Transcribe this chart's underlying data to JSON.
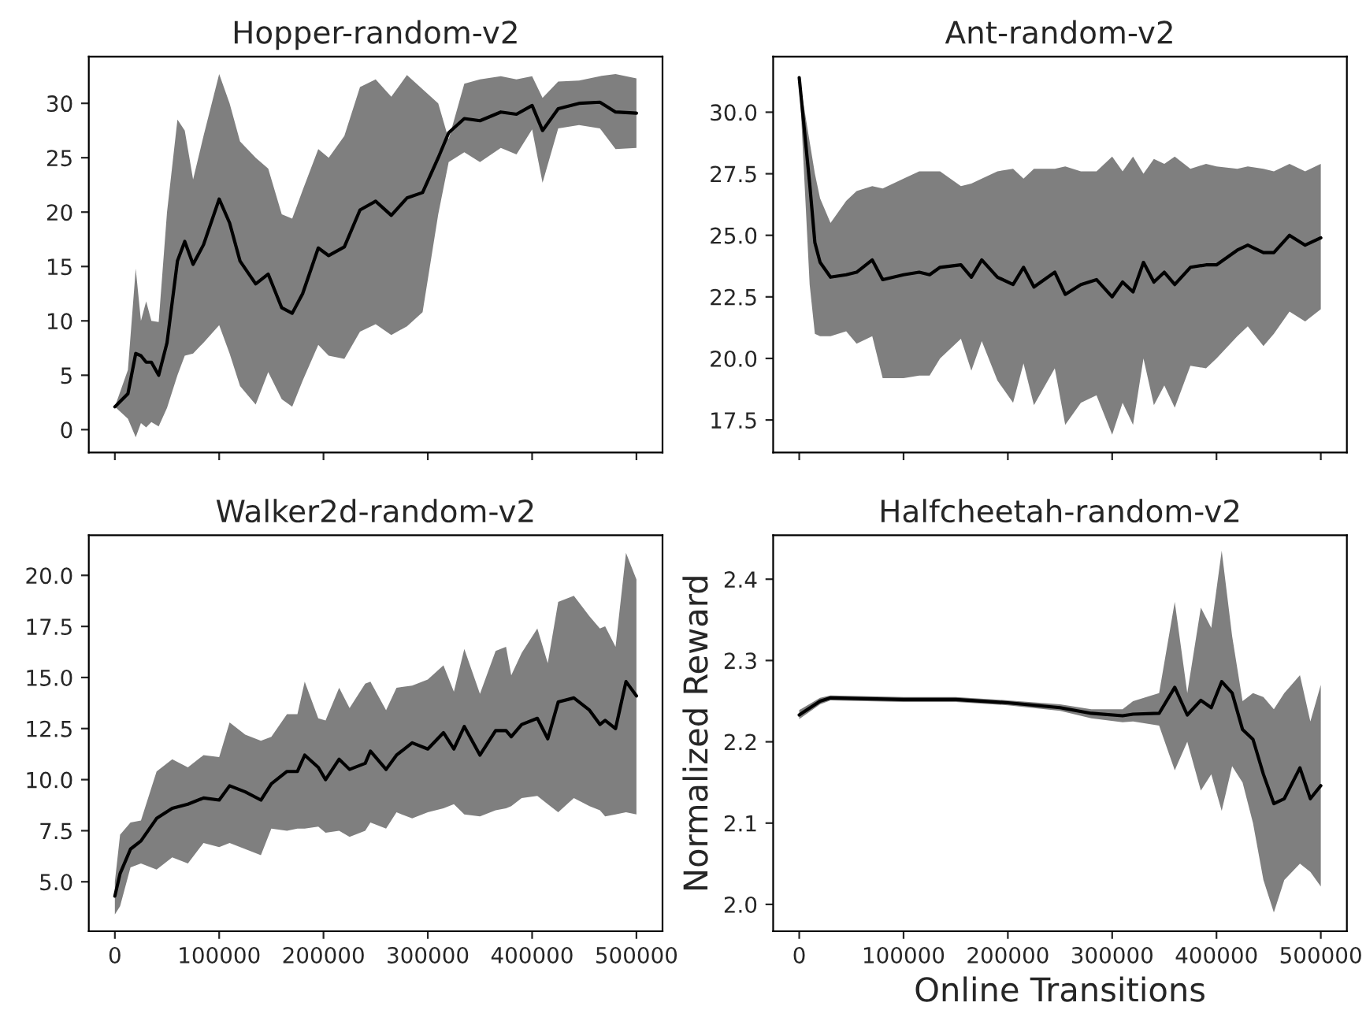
{
  "chart_data": [
    {
      "type": "line",
      "title": "Hopper-random-v2",
      "xlim": [
        -25000,
        525000
      ],
      "ylim": [
        -2.1,
        34.3
      ],
      "xticks": [
        0,
        100000,
        200000,
        300000,
        400000,
        500000
      ],
      "yticks": [
        0,
        5,
        10,
        15,
        20,
        25,
        30
      ],
      "tick_labels": "y",
      "series": [
        {
          "color": "#000000",
          "x": [
            0,
            12500,
            20000,
            25000,
            30000,
            35000,
            42000,
            50000,
            60000,
            67000,
            75000,
            85000,
            100000,
            110000,
            120000,
            135000,
            147000,
            160000,
            170000,
            180000,
            195000,
            205000,
            220000,
            235000,
            250000,
            265000,
            280000,
            295000,
            310000,
            320000,
            335000,
            350000,
            370000,
            385000,
            400000,
            410000,
            425000,
            445000,
            465000,
            480000,
            500000
          ],
          "values": [
            2.1,
            3.3,
            7.0,
            6.8,
            6.2,
            6.2,
            5.0,
            8,
            15.5,
            17.3,
            15.2,
            17,
            21.2,
            19,
            15.5,
            13.4,
            14.3,
            11.2,
            10.7,
            12.5,
            16.7,
            16.0,
            16.8,
            20.2,
            21.0,
            19.7,
            21.3,
            21.8,
            25,
            27.3,
            28.6,
            28.4,
            29.2,
            29.0,
            29.8,
            27.5,
            29.5,
            30.0,
            30.1,
            29.2,
            29.1
          ],
          "upper": [
            2.1,
            5.5,
            14.8,
            10,
            11.8,
            10,
            9.9,
            20,
            28.5,
            27.5,
            23,
            27,
            32.7,
            30,
            26.5,
            25,
            24,
            19.8,
            19.4,
            22,
            25.8,
            25,
            27,
            31.5,
            32.2,
            30.6,
            32.6,
            31.3,
            30,
            26.7,
            31.8,
            32.2,
            32.5,
            32.2,
            32.5,
            30.5,
            32,
            32.1,
            32.5,
            32.7,
            32.3
          ],
          "lower": [
            2.1,
            1.0,
            -0.7,
            0.6,
            0.2,
            0.7,
            0.3,
            2,
            5,
            6.8,
            7,
            8,
            9.6,
            7,
            4,
            2.3,
            5.3,
            2.8,
            2.1,
            4.5,
            7.8,
            6.8,
            6.5,
            9,
            9.7,
            8.7,
            9.5,
            10.8,
            19.8,
            24.6,
            25.5,
            24.6,
            25.9,
            25.3,
            27.6,
            22.7,
            27.7,
            28,
            27.7,
            25.8,
            25.9
          ]
        }
      ]
    },
    {
      "type": "line",
      "title": "Ant-random-v2",
      "xlim": [
        -25000,
        525000
      ],
      "ylim": [
        16.18,
        32.26
      ],
      "xticks": [
        0,
        100000,
        200000,
        300000,
        400000,
        500000
      ],
      "yticks": [
        {
          "value": 17.5,
          "label": "17.5"
        },
        {
          "value": 20,
          "label": "20.0"
        },
        {
          "value": 22.5,
          "label": "22.5"
        },
        {
          "value": 25,
          "label": "25.0"
        },
        {
          "value": 27.5,
          "label": "27.5"
        },
        {
          "value": 30,
          "label": "30.0"
        }
      ],
      "tick_labels": "y",
      "series": [
        {
          "color": "#000000",
          "x": [
            0,
            10000,
            15000,
            20000,
            30000,
            45000,
            55000,
            70000,
            80000,
            100000,
            115000,
            125000,
            135000,
            155000,
            165000,
            175000,
            190000,
            205000,
            215000,
            225000,
            245000,
            255000,
            270000,
            285000,
            300000,
            310000,
            320000,
            330000,
            340000,
            350000,
            360000,
            375000,
            390000,
            400000,
            420000,
            430000,
            445000,
            455000,
            470000,
            485000,
            500000
          ],
          "values": [
            31.4,
            27.1,
            24.7,
            23.9,
            23.3,
            23.4,
            23.5,
            24.0,
            23.2,
            23.4,
            23.5,
            23.4,
            23.7,
            23.8,
            23.3,
            24.0,
            23.3,
            23.0,
            23.7,
            22.9,
            23.5,
            22.6,
            23.0,
            23.2,
            22.5,
            23.1,
            22.7,
            23.9,
            23.1,
            23.5,
            23.0,
            23.7,
            23.8,
            23.8,
            24.4,
            24.6,
            24.3,
            24.3,
            25.0,
            24.6,
            24.9
          ],
          "upper": [
            31.4,
            28.8,
            27.5,
            26.5,
            25.5,
            26.4,
            26.8,
            27.0,
            26.9,
            27.3,
            27.6,
            27.6,
            27.6,
            27.0,
            27.1,
            27.3,
            27.6,
            27.7,
            27.3,
            27.7,
            27.7,
            27.8,
            27.6,
            27.6,
            28.2,
            27.6,
            28.2,
            27.5,
            28.1,
            27.9,
            28.2,
            27.7,
            27.9,
            27.8,
            27.7,
            27.8,
            27.7,
            27.6,
            27.9,
            27.6,
            27.9
          ],
          "lower": [
            31.4,
            23,
            21,
            20.9,
            20.9,
            21.1,
            20.6,
            20.9,
            19.2,
            19.2,
            19.3,
            19.3,
            20.0,
            20.8,
            19.5,
            20.7,
            19.1,
            18.2,
            19.8,
            18.1,
            19.6,
            17.3,
            18.2,
            18.5,
            16.9,
            18.2,
            17.3,
            20.0,
            18.1,
            18.9,
            18.0,
            19.7,
            19.6,
            20.0,
            20.9,
            21.3,
            20.5,
            21.0,
            21.9,
            21.5,
            22.0
          ]
        }
      ]
    },
    {
      "type": "line",
      "title": "Walker2d-random-v2",
      "xlim": [
        -25000,
        525000
      ],
      "ylim": [
        2.58,
        21.96
      ],
      "xticks": [
        0,
        100000,
        200000,
        300000,
        400000,
        500000
      ],
      "yticks": [
        {
          "value": 5,
          "label": "5.0"
        },
        {
          "value": 7.5,
          "label": "7.5"
        },
        {
          "value": 10,
          "label": "10.0"
        },
        {
          "value": 12.5,
          "label": "12.5"
        },
        {
          "value": 15,
          "label": "15.0"
        },
        {
          "value": 17.5,
          "label": "17.5"
        },
        {
          "value": 20,
          "label": "20.0"
        }
      ],
      "series": [
        {
          "color": "#000000",
          "x": [
            0,
            5000,
            15000,
            25000,
            40000,
            55000,
            70000,
            85000,
            100000,
            110000,
            125000,
            140000,
            150000,
            165000,
            175000,
            182000,
            195000,
            202000,
            215000,
            225000,
            240000,
            245000,
            260000,
            270000,
            285000,
            300000,
            315000,
            325000,
            335000,
            350000,
            365000,
            375000,
            380000,
            390000,
            405000,
            415000,
            425000,
            440000,
            455000,
            465000,
            470000,
            480000,
            490000,
            500000
          ],
          "values": [
            4.3,
            5.4,
            6.6,
            7.0,
            8.1,
            8.6,
            8.8,
            9.1,
            9.0,
            9.7,
            9.4,
            9.0,
            9.8,
            10.4,
            10.4,
            11.2,
            10.6,
            10.0,
            11.0,
            10.5,
            10.8,
            11.4,
            10.5,
            11.2,
            11.8,
            11.5,
            12.3,
            11.5,
            12.6,
            11.2,
            12.4,
            12.4,
            12.1,
            12.7,
            13.0,
            12.0,
            13.8,
            14.0,
            13.4,
            12.7,
            12.9,
            12.5,
            14.8,
            14.1
          ],
          "upper": [
            5.0,
            7.3,
            7.9,
            8.0,
            10.4,
            11.0,
            10.6,
            11.2,
            11.1,
            12.8,
            12.2,
            11.9,
            12.1,
            13.2,
            13.2,
            14.8,
            13.0,
            12.9,
            14.5,
            13.5,
            14.7,
            14.8,
            13.4,
            14.5,
            14.6,
            14.9,
            15.6,
            14.3,
            16.4,
            14.2,
            16.3,
            16.5,
            15.1,
            16.2,
            17.4,
            15.7,
            18.7,
            19.0,
            18.0,
            17.4,
            17.5,
            16.5,
            21.1,
            19.8
          ],
          "lower": [
            3.4,
            3.8,
            5.7,
            5.9,
            5.6,
            6.2,
            5.9,
            6.9,
            6.7,
            6.9,
            6.6,
            6.3,
            7.6,
            7.5,
            7.6,
            7.6,
            7.7,
            7.4,
            7.5,
            7.2,
            7.5,
            7.9,
            7.6,
            8.4,
            8.1,
            8.4,
            8.6,
            8.8,
            8.3,
            8.2,
            8.5,
            8.6,
            8.7,
            9.1,
            9.2,
            8.8,
            8.4,
            9.1,
            8.7,
            8.5,
            8.2,
            8.3,
            8.4,
            8.3
          ]
        }
      ]
    },
    {
      "type": "line",
      "title": "Halfcheetah-random-v2",
      "xlabel": "Online Transitions",
      "ylabel": "Normalized Reward",
      "xlim": [
        -25000,
        525000
      ],
      "ylim": [
        1.967,
        2.454
      ],
      "xticks": [
        0,
        100000,
        200000,
        300000,
        400000,
        500000
      ],
      "yticks": [
        {
          "value": 2.0,
          "label": "2.0"
        },
        2.1,
        2.2,
        2.3,
        2.4
      ],
      "series": [
        {
          "color": "#000000",
          "x": [
            0,
            20000,
            30000,
            100000,
            150000,
            200000,
            250000,
            280000,
            310000,
            320000,
            345000,
            360000,
            372000,
            385000,
            395000,
            405000,
            415000,
            425000,
            435000,
            445000,
            455000,
            465000,
            480000,
            490000,
            500000
          ],
          "values": [
            2.233,
            2.25,
            2.254,
            2.252,
            2.252,
            2.248,
            2.242,
            2.235,
            2.232,
            2.234,
            2.235,
            2.267,
            2.233,
            2.251,
            2.242,
            2.274,
            2.26,
            2.215,
            2.203,
            2.16,
            2.124,
            2.13,
            2.168,
            2.13,
            2.146
          ],
          "upper": [
            2.239,
            2.254,
            2.257,
            2.255,
            2.255,
            2.251,
            2.246,
            2.24,
            2.24,
            2.25,
            2.26,
            2.372,
            2.26,
            2.365,
            2.34,
            2.435,
            2.33,
            2.25,
            2.26,
            2.255,
            2.24,
            2.26,
            2.282,
            2.225,
            2.27
          ],
          "lower": [
            2.228,
            2.246,
            2.251,
            2.249,
            2.249,
            2.245,
            2.238,
            2.229,
            2.224,
            2.225,
            2.22,
            2.165,
            2.2,
            2.14,
            2.16,
            2.115,
            2.17,
            2.15,
            2.1,
            2.03,
            1.99,
            2.03,
            2.05,
            2.04,
            2.022
          ]
        }
      ]
    }
  ]
}
